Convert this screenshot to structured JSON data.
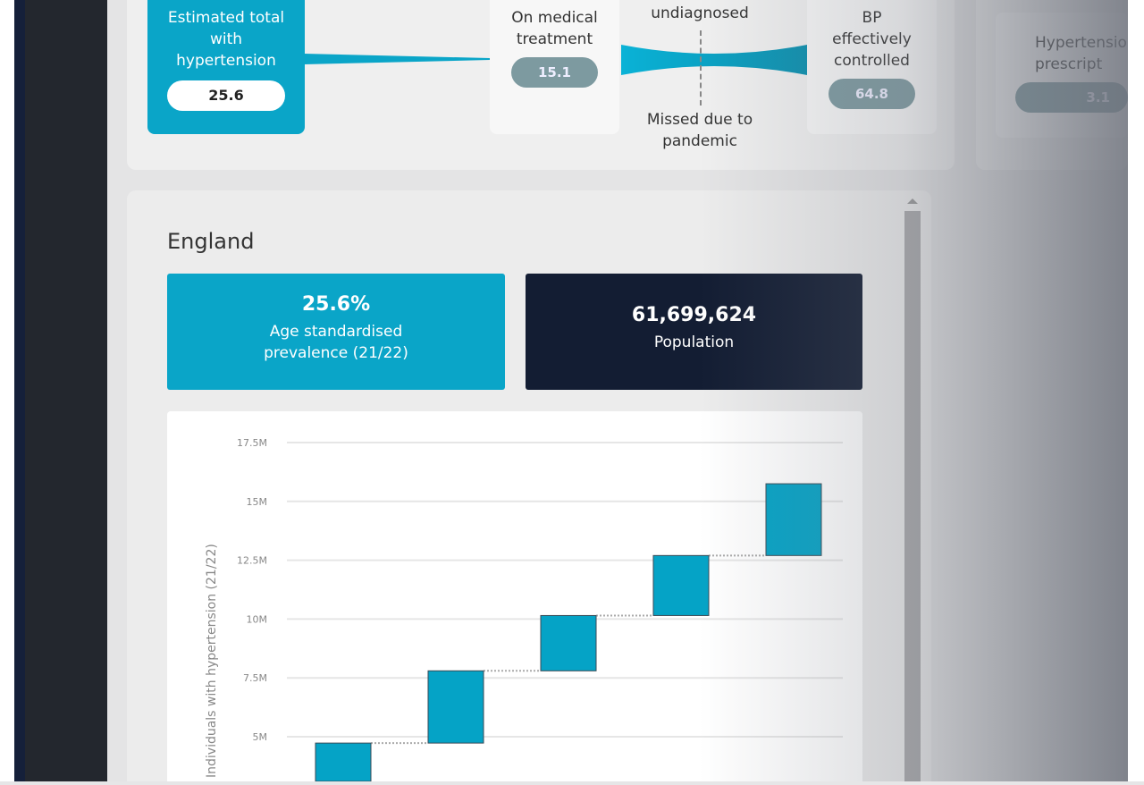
{
  "flow": {
    "estimated": {
      "label": "Estimated total with hypertension",
      "value": "25.6"
    },
    "treatment": {
      "label": "On medical treatment",
      "value": "15.1"
    },
    "undiagnosed_label": "Number undiagnosed",
    "missed_label": "Missed due to pandemic",
    "controlled": {
      "label": "BP effectively controlled",
      "value": "64.8"
    },
    "prescriptions": {
      "label": "Hypertension prescript",
      "value": "3.1"
    }
  },
  "region": {
    "title": "England",
    "prevalence": {
      "value": "25.6%",
      "label": "Age standardised prevalence (21/22)"
    },
    "population": {
      "value": "61,699,624",
      "label": "Population"
    }
  },
  "colors": {
    "accent": "#0aa5c8",
    "navy": "#131d33",
    "bar": "#05a3c6"
  },
  "chart_data": {
    "type": "bar",
    "subtype": "waterfall",
    "ylabel": "Individuals with hypertension (21/22)",
    "ylim": [
      0,
      17.5
    ],
    "yticks": [
      "5M",
      "7.5M",
      "10M",
      "12.5M",
      "15M",
      "17.5M"
    ],
    "grid": true,
    "bars": [
      {
        "start": 0,
        "end": 4.73
      },
      {
        "start": 4.73,
        "end": 7.8
      },
      {
        "start": 7.8,
        "end": 10.15
      },
      {
        "start": 10.15,
        "end": 12.7
      },
      {
        "start": 12.7,
        "end": 15.75
      }
    ]
  }
}
